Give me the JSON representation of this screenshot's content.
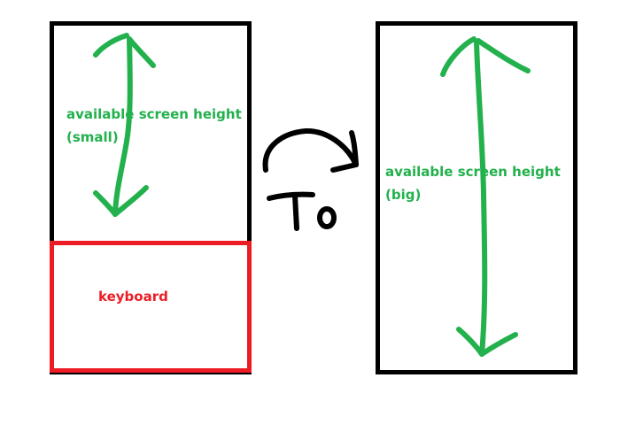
{
  "colors": {
    "outline": "#000000",
    "available_area": "#22b14c",
    "keyboard_area": "#ed1c24"
  },
  "left_screen": {
    "available_label_line1": "available screen height",
    "available_label_line2": "(small)",
    "keyboard_label": "keyboard"
  },
  "transition": {
    "text": "To"
  },
  "right_screen": {
    "available_label_line1": "available screen height",
    "available_label_line2": "(big)"
  }
}
